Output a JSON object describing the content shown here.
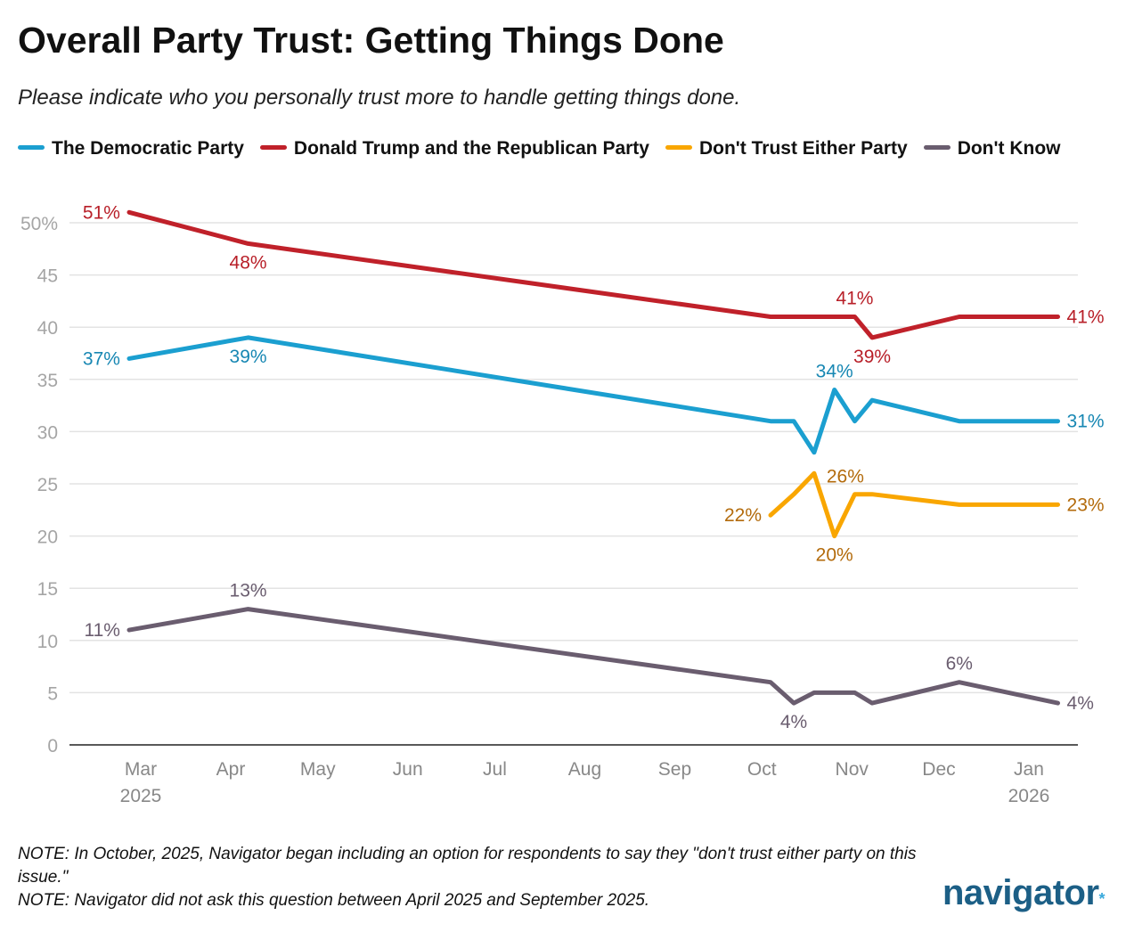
{
  "chart_data": {
    "type": "line",
    "title": "Overall Party Trust: Getting Things Done",
    "subtitle": "Please indicate who you personally trust more to handle getting things done.",
    "ylim": [
      0,
      50
    ],
    "yticks": [
      "0",
      "5",
      "10",
      "15",
      "20",
      "25",
      "30",
      "35",
      "40",
      "45",
      "50%"
    ],
    "ytick_values": [
      0,
      5,
      10,
      15,
      20,
      25,
      30,
      35,
      40,
      45,
      50
    ],
    "grid": true,
    "legend_placement": "top",
    "xticks": [
      {
        "date": "2025-03-01",
        "label": "Mar",
        "year": "2025"
      },
      {
        "date": "2025-04-01",
        "label": "Apr",
        "year": ""
      },
      {
        "date": "2025-05-01",
        "label": "May",
        "year": ""
      },
      {
        "date": "2025-06-01",
        "label": "Jun",
        "year": ""
      },
      {
        "date": "2025-07-01",
        "label": "Jul",
        "year": ""
      },
      {
        "date": "2025-08-01",
        "label": "Aug",
        "year": ""
      },
      {
        "date": "2025-09-01",
        "label": "Sep",
        "year": ""
      },
      {
        "date": "2025-10-01",
        "label": "Oct",
        "year": ""
      },
      {
        "date": "2025-11-01",
        "label": "Nov",
        "year": ""
      },
      {
        "date": "2025-12-01",
        "label": "Dec",
        "year": ""
      },
      {
        "date": "2026-01-01",
        "label": "Jan",
        "year": "2026"
      }
    ],
    "x": [
      "2025-02-25",
      "2025-04-07",
      "2025-10-04",
      "2025-10-12",
      "2025-10-19",
      "2025-10-26",
      "2025-11-02",
      "2025-11-08",
      "2025-12-08",
      "2026-01-11"
    ],
    "series": [
      {
        "name": "The Democratic Party",
        "color": "#1b9fd0",
        "label_color": "#1787b3",
        "values": [
          37,
          39,
          31,
          31,
          28,
          34,
          31,
          33,
          31,
          31
        ],
        "labels": [
          {
            "i": 0,
            "text": "37%",
            "pos": "left"
          },
          {
            "i": 1,
            "text": "39%",
            "pos": "below"
          },
          {
            "i": 5,
            "text": "34%",
            "pos": "above"
          },
          {
            "i": 9,
            "text": "31%",
            "pos": "right"
          }
        ]
      },
      {
        "name": "Donald Trump and the Republican Party",
        "color": "#c0212a",
        "label_color": "#b81f28",
        "values": [
          51,
          48,
          41,
          41,
          41,
          41,
          41,
          39,
          41,
          41
        ],
        "labels": [
          {
            "i": 0,
            "text": "51%",
            "pos": "left"
          },
          {
            "i": 1,
            "text": "48%",
            "pos": "below"
          },
          {
            "i": 6,
            "text": "41%",
            "pos": "above"
          },
          {
            "i": 7,
            "text": "39%",
            "pos": "below"
          },
          {
            "i": 9,
            "text": "41%",
            "pos": "right"
          }
        ]
      },
      {
        "name": "Don't Trust Either Party",
        "color": "#f9a600",
        "label_color": "#b36b0c",
        "values": [
          null,
          null,
          22,
          24,
          26,
          20,
          24,
          24,
          23,
          23
        ],
        "labels": [
          {
            "i": 2,
            "text": "22%",
            "pos": "left"
          },
          {
            "i": 4,
            "text": "26%",
            "pos": "right"
          },
          {
            "i": 5,
            "text": "20%",
            "pos": "below"
          },
          {
            "i": 9,
            "text": "23%",
            "pos": "right"
          }
        ]
      },
      {
        "name": "Don't Know",
        "color": "#6a5d6f",
        "label_color": "#6a5d6f",
        "values": [
          11,
          13,
          6,
          4,
          5,
          5,
          5,
          4,
          6,
          4
        ],
        "labels": [
          {
            "i": 0,
            "text": "11%",
            "pos": "left"
          },
          {
            "i": 1,
            "text": "13%",
            "pos": "above"
          },
          {
            "i": 3,
            "text": "4%",
            "pos": "below"
          },
          {
            "i": 8,
            "text": "6%",
            "pos": "above"
          },
          {
            "i": 9,
            "text": "4%",
            "pos": "right"
          }
        ]
      }
    ]
  },
  "notes": [
    "NOTE: In October, 2025, Navigator began including an option for respondents to say they \"don't trust either party on this issue.\"",
    "NOTE: Navigator did not ask this question between April 2025 and September 2025."
  ],
  "logo": "navigator"
}
